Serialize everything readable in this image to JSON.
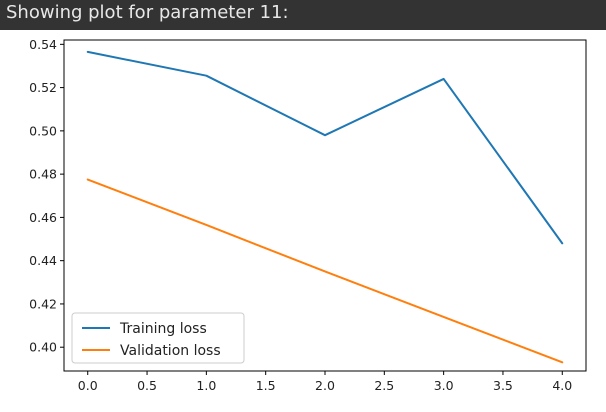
{
  "output": {
    "header": "Showing plot for parameter 11:"
  },
  "chart_data": {
    "type": "line",
    "title": "",
    "xlabel": "",
    "ylabel": "",
    "x": [
      0,
      1,
      2,
      3,
      4
    ],
    "series": [
      {
        "name": "Training loss",
        "values": [
          0.5365,
          0.5255,
          0.498,
          0.524,
          0.448
        ],
        "color": "#1f77b4"
      },
      {
        "name": "Validation loss",
        "values": [
          0.4775,
          0.4565,
          0.435,
          0.414,
          0.393
        ],
        "color": "#ff7f0e"
      }
    ],
    "xlim": [
      -0.2,
      4.2
    ],
    "ylim": [
      0.389,
      0.542
    ],
    "xticks": [
      0.0,
      0.5,
      1.0,
      1.5,
      2.0,
      2.5,
      3.0,
      3.5,
      4.0
    ],
    "xtick_labels": [
      "0.0",
      "0.5",
      "1.0",
      "1.5",
      "2.0",
      "2.5",
      "3.0",
      "3.5",
      "4.0"
    ],
    "yticks": [
      0.4,
      0.42,
      0.44,
      0.46,
      0.48,
      0.5,
      0.52,
      0.54
    ],
    "ytick_labels": [
      "0.40",
      "0.42",
      "0.44",
      "0.46",
      "0.48",
      "0.50",
      "0.52",
      "0.54"
    ],
    "grid": false,
    "legend": "lower-left"
  }
}
